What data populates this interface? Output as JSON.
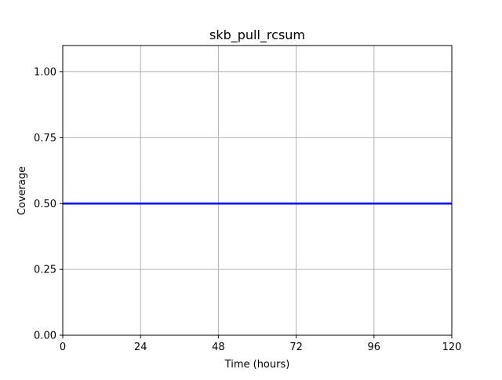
{
  "chart_data": {
    "type": "line",
    "title": "skb_pull_rcsum",
    "xlabel": "Time (hours)",
    "ylabel": "Coverage",
    "xlim": [
      0,
      120
    ],
    "ylim": [
      0,
      1.1
    ],
    "x_ticks": [
      0,
      24,
      48,
      72,
      96,
      120
    ],
    "x_tick_labels": [
      "0",
      "24",
      "48",
      "72",
      "96",
      "120"
    ],
    "y_ticks": [
      0,
      0.25,
      0.5,
      0.75,
      1.0
    ],
    "y_tick_labels": [
      "0.00",
      "0.25",
      "0.50",
      "0.75",
      "1.00"
    ],
    "grid": true,
    "series": [
      {
        "color": "#0000ff",
        "x": [
          0,
          120
        ],
        "y": [
          0.5,
          0.5
        ]
      }
    ]
  }
}
